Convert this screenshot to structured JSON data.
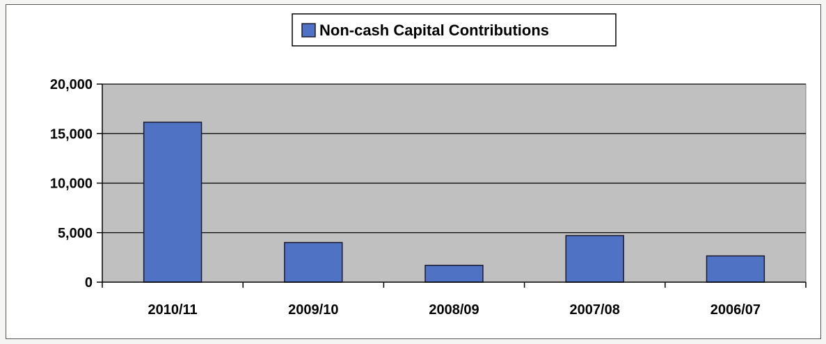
{
  "colors": {
    "plot_background": "#c0c0c0",
    "bar_fill": "#4f72c4",
    "bar_stroke": "#1a1a2e",
    "gridline": "#000000"
  },
  "chart_data": {
    "type": "bar",
    "categories": [
      "2010/11",
      "2009/10",
      "2008/09",
      "2007/08",
      "2006/07"
    ],
    "series": [
      {
        "name": "Non-cash Capital Contributions",
        "values": [
          16150,
          4000,
          1700,
          4700,
          2650
        ]
      }
    ],
    "ylim": [
      0,
      20000
    ],
    "yticks": [
      0,
      5000,
      10000,
      15000,
      20000
    ],
    "ytick_labels": [
      "0",
      "5,000",
      "10,000",
      "15,000",
      "20,000"
    ],
    "grid": true,
    "legend_position": "top-center"
  }
}
